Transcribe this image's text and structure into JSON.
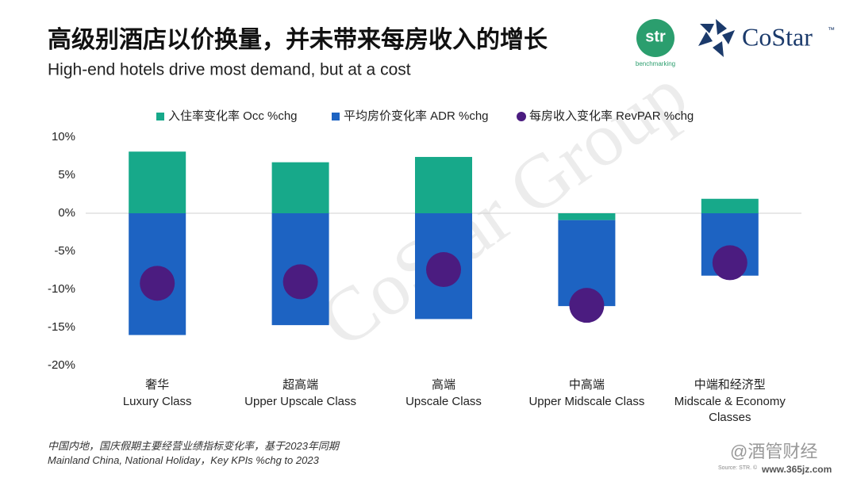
{
  "header": {
    "title": "高级别酒店以价换量，并未带来每房收入的增长",
    "subtitle": "High-end hotels drive most demand, but at a cost"
  },
  "logos": {
    "str": "str",
    "str_sub": "benchmarking",
    "costar": "CoStar",
    "costar_mark": "™"
  },
  "watermark": "CoStar Group",
  "chart_data": {
    "type": "bar",
    "categories": [
      [
        "奢华",
        "Luxury Class"
      ],
      [
        "超高端",
        "Upper Upscale Class"
      ],
      [
        "高端",
        "Upscale Class"
      ],
      [
        "中高端",
        "Upper Midscale Class"
      ],
      [
        "中端和经济型",
        "Midscale & Economy Classes"
      ]
    ],
    "series": [
      {
        "name": "入住率变化率 Occ %chg",
        "type": "bar",
        "color": "#17a98a",
        "values": [
          8.1,
          6.7,
          7.4,
          -0.9,
          1.9
        ]
      },
      {
        "name": "平均房价变化率 ADR %chg",
        "type": "bar",
        "color": "#1d63c2",
        "values": [
          -16.0,
          -14.7,
          -13.9,
          -11.3,
          -8.2
        ]
      },
      {
        "name": "每房收入变化率 RevPAR %chg",
        "type": "scatter",
        "color": "#4b1c80",
        "values": [
          -9.2,
          -9.0,
          -7.4,
          -12.1,
          -6.5
        ]
      }
    ],
    "ylim": [
      -20,
      10
    ],
    "yticks": [
      {
        "value": -20,
        "label": "-20%"
      },
      {
        "value": -15,
        "label": "-15%"
      },
      {
        "value": -10,
        "label": "-10%"
      },
      {
        "value": -5,
        "label": "-5%"
      },
      {
        "value": 0,
        "label": "0%"
      },
      {
        "value": 5,
        "label": "5%"
      },
      {
        "value": 10,
        "label": "10%"
      }
    ],
    "legend": "top"
  },
  "footnote": [
    "中国内地，国庆假期主要经营业绩指标变化率，基于2023年同期",
    "Mainland China, National Holiday，Key KPIs %chg to 2023"
  ],
  "source": "Source: STR. ©",
  "credit": {
    "brand": "@酒管财经",
    "url": "www.365jz.com"
  }
}
